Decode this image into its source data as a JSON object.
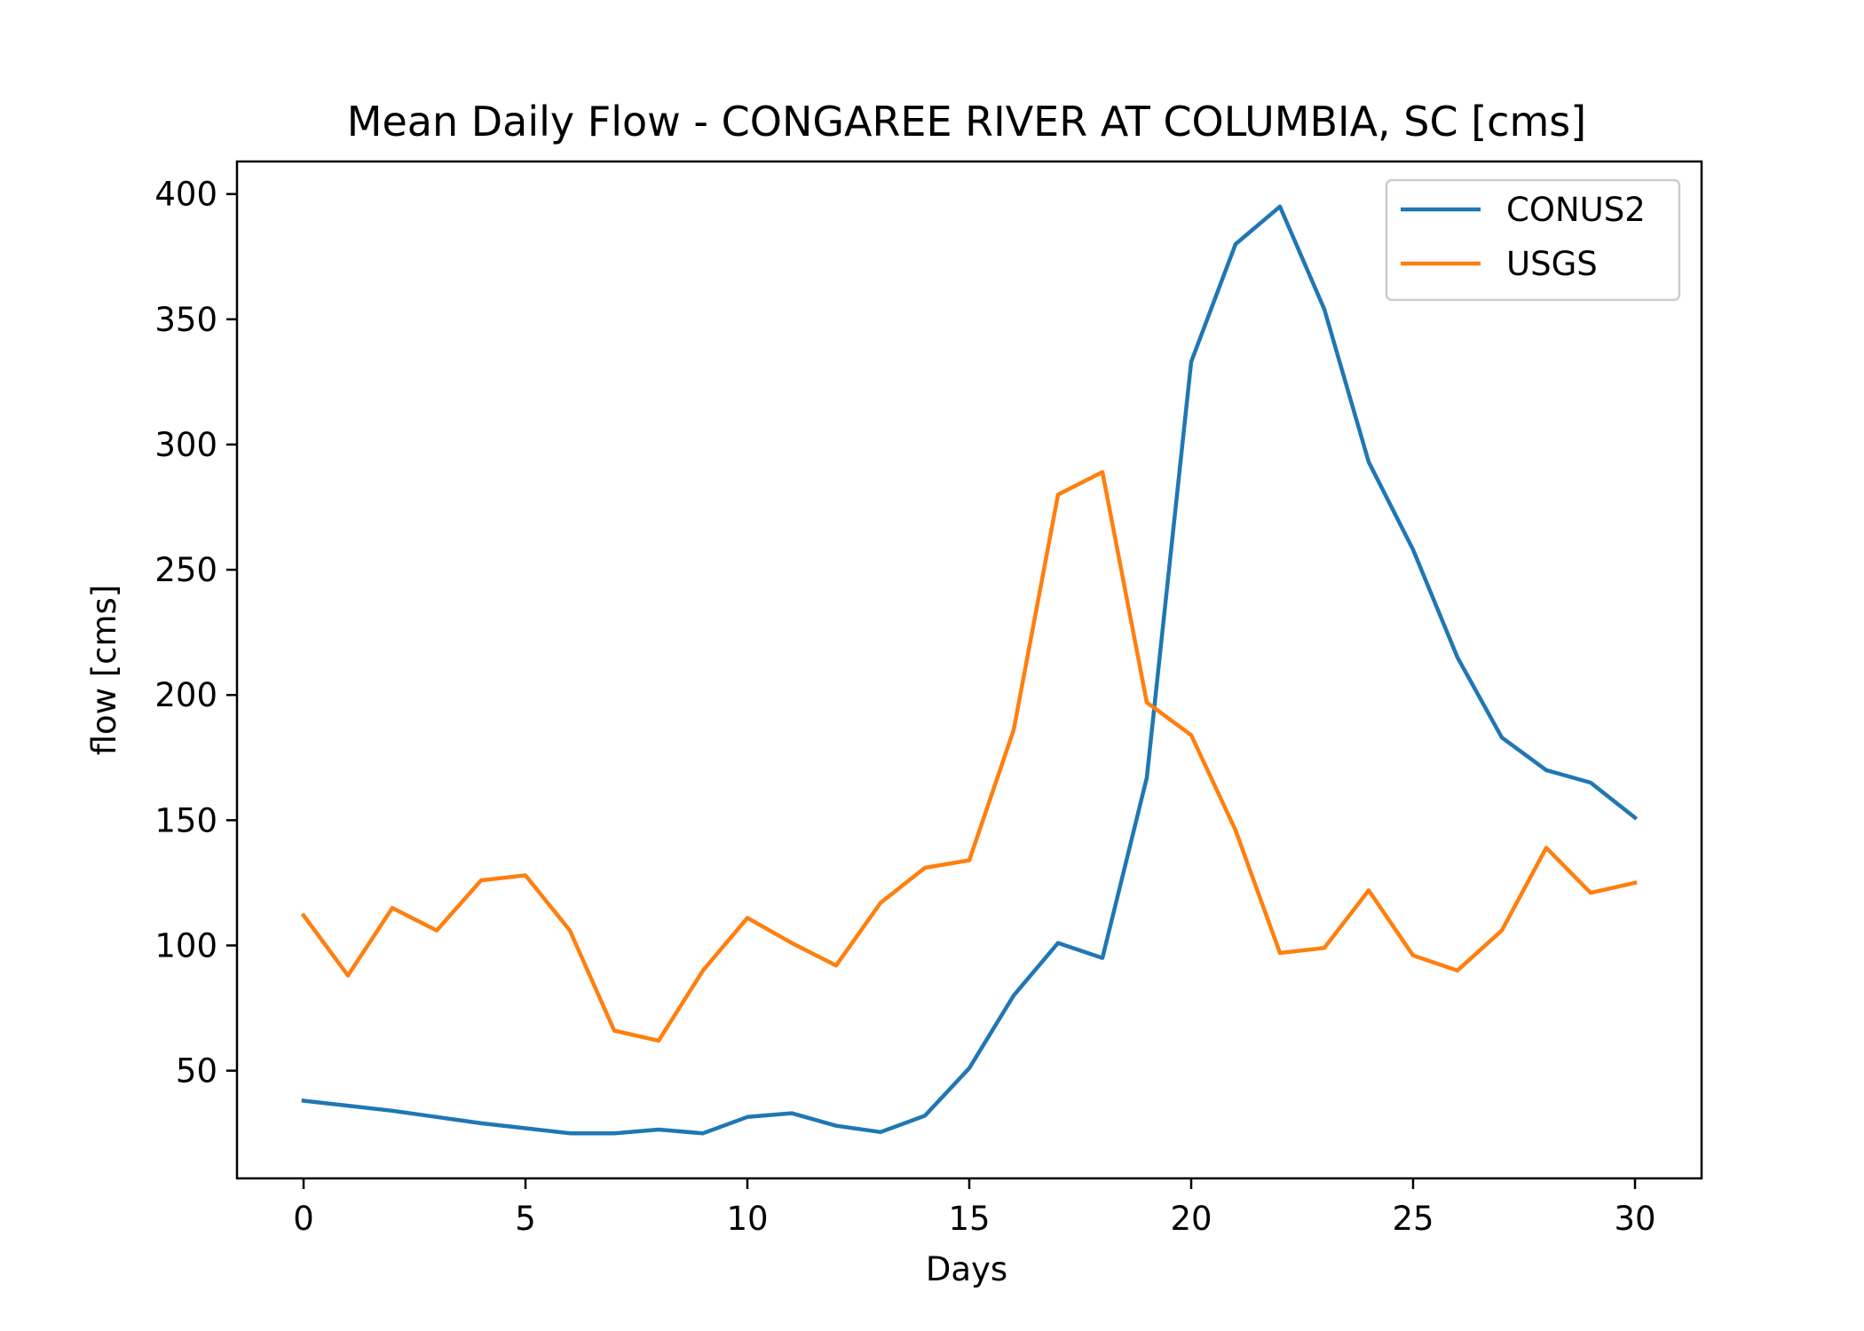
{
  "chart_data": {
    "type": "line",
    "title": "Mean Daily Flow - CONGAREE RIVER AT COLUMBIA, SC [cms]",
    "xlabel": "Days",
    "ylabel": "flow [cms]",
    "xlim": [
      -1.5,
      31.5
    ],
    "ylim": [
      7,
      413
    ],
    "xticks": [
      0,
      5,
      10,
      15,
      20,
      25,
      30
    ],
    "yticks": [
      50,
      100,
      150,
      200,
      250,
      300,
      350,
      400
    ],
    "grid": false,
    "legend_position": "upper right",
    "x": [
      0,
      1,
      2,
      3,
      4,
      5,
      6,
      7,
      8,
      9,
      10,
      11,
      12,
      13,
      14,
      15,
      16,
      17,
      18,
      19,
      20,
      21,
      22,
      23,
      24,
      25,
      26,
      27,
      28,
      29,
      30
    ],
    "series": [
      {
        "name": "CONUS2",
        "color": "#1f77b4",
        "values": [
          38,
          36,
          34,
          31.5,
          29,
          27,
          25,
          25,
          26.5,
          25,
          31.5,
          33,
          28,
          25.5,
          32,
          51,
          80,
          101,
          95,
          167,
          333,
          380,
          395,
          354,
          293,
          258,
          215,
          183,
          170,
          165,
          151
        ]
      },
      {
        "name": "USGS",
        "color": "#ff7f0e",
        "values": [
          112,
          88,
          115,
          106,
          126,
          128,
          106,
          66,
          62,
          90,
          111,
          101,
          92,
          117,
          131,
          134,
          186,
          280,
          289,
          197,
          184,
          146,
          97,
          99,
          122,
          96,
          90,
          106,
          139,
          121,
          125
        ]
      }
    ]
  }
}
